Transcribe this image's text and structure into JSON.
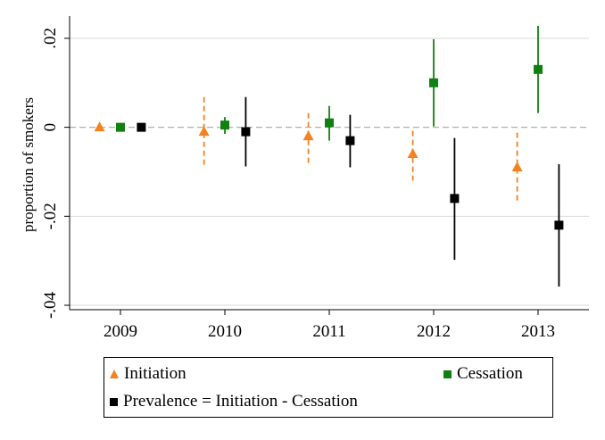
{
  "colors": {
    "initiation": "#f58220",
    "cessation": "#108010",
    "prevalence": "#000000",
    "grid": "#d9d9d9",
    "zero": "#b0b0b0"
  },
  "chart_data": {
    "type": "scatter",
    "ylabel": "proportion of smokers",
    "xlabel": "",
    "categories": [
      "2009",
      "2010",
      "2011",
      "2012",
      "2013"
    ],
    "ylim": [
      -0.041,
      0.025
    ],
    "yticks": [
      -0.04,
      -0.02,
      0,
      0.02
    ],
    "ytick_labels": [
      "-.04",
      "-.02",
      "0",
      ".02"
    ],
    "grid": true,
    "legend_position": "bottom",
    "series": [
      {
        "name": "Initiation",
        "marker": "triangle",
        "line": "dashed",
        "offset": -0.2,
        "values": [
          0,
          -0.001,
          -0.002,
          -0.006,
          -0.009
        ],
        "ci_low": [
          null,
          -0.009,
          -0.008,
          -0.012,
          -0.017
        ],
        "ci_high": [
          null,
          0.0068,
          0.0032,
          -0.0008,
          -0.0012
        ]
      },
      {
        "name": "Cessation",
        "marker": "square",
        "line": "solid",
        "offset": 0,
        "values": [
          0,
          0.0005,
          0.001,
          0.01,
          0.013
        ],
        "ci_low": [
          null,
          -0.0015,
          -0.003,
          0.0002,
          0.0032
        ],
        "ci_high": [
          null,
          0.0023,
          0.0048,
          0.0198,
          0.0228
        ]
      },
      {
        "name": "Prevalence = Initiation - Cessation",
        "marker": "square",
        "line": "solid",
        "offset": 0.2,
        "values": [
          0,
          -0.001,
          -0.003,
          -0.016,
          -0.022
        ],
        "ci_low": [
          null,
          -0.0088,
          -0.009,
          -0.0298,
          -0.0358
        ],
        "ci_high": [
          null,
          0.0068,
          0.0028,
          -0.0024,
          -0.0083
        ]
      }
    ]
  },
  "legend": {
    "initiation": "Initiation",
    "cessation": "Cessation",
    "prevalence": "Prevalence = Initiation - Cessation"
  }
}
